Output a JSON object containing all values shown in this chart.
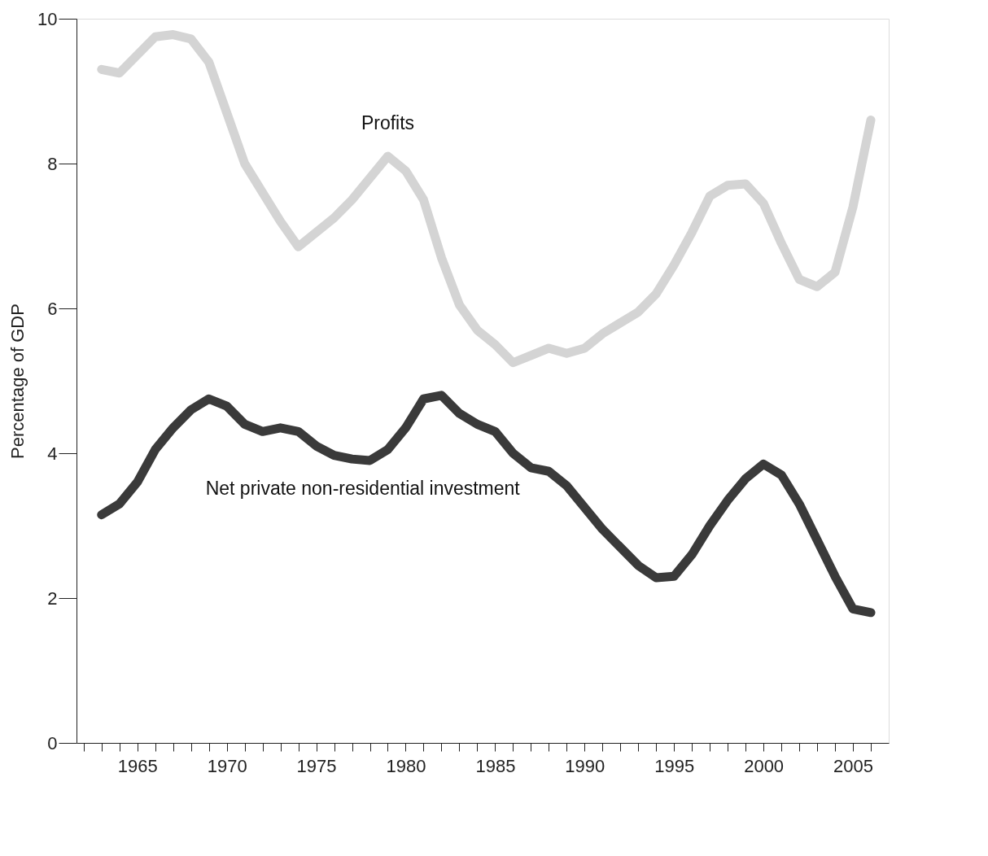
{
  "chart_data": {
    "type": "line",
    "ylabel": "Percentage of GDP",
    "x": [
      1963,
      1964,
      1965,
      1966,
      1967,
      1968,
      1969,
      1970,
      1971,
      1972,
      1973,
      1974,
      1975,
      1976,
      1977,
      1978,
      1979,
      1980,
      1981,
      1982,
      1983,
      1984,
      1985,
      1986,
      1987,
      1988,
      1989,
      1990,
      1991,
      1992,
      1993,
      1994,
      1995,
      1996,
      1997,
      1998,
      1999,
      2000,
      2001,
      2002,
      2003,
      2004,
      2005,
      2006
    ],
    "series": [
      {
        "color": "#d4d4d4",
        "values": [
          9.3,
          9.25,
          9.5,
          9.75,
          9.78,
          9.72,
          9.4,
          8.7,
          8.0,
          7.6,
          7.2,
          6.85,
          7.05,
          7.25,
          7.5,
          7.8,
          8.1,
          7.9,
          7.5,
          6.7,
          6.05,
          5.7,
          5.5,
          5.25,
          5.35,
          5.45,
          5.38,
          5.45,
          5.65,
          5.8,
          5.95,
          6.2,
          6.6,
          7.05,
          7.55,
          7.7,
          7.72,
          7.45,
          6.9,
          6.4,
          6.3,
          6.5,
          7.4,
          8.6
        ]
      },
      {
        "color": "#3a3a3a",
        "values": [
          3.15,
          3.3,
          3.6,
          4.05,
          4.35,
          4.6,
          4.75,
          4.65,
          4.4,
          4.3,
          4.35,
          4.3,
          4.1,
          3.97,
          3.92,
          3.9,
          4.05,
          4.35,
          4.75,
          4.8,
          4.55,
          4.4,
          4.3,
          4.0,
          3.8,
          3.75,
          3.55,
          3.25,
          2.95,
          2.7,
          2.45,
          2.28,
          2.3,
          2.6,
          3.0,
          3.35,
          3.65,
          3.85,
          3.7,
          3.3,
          2.8,
          2.3,
          1.85,
          1.8
        ]
      }
    ],
    "annotations": [
      {
        "text": "Profits",
        "x": 1979,
        "y": 8.1
      },
      {
        "text": "Net private non-residential investment",
        "x": 1977.6,
        "y": 3.9
      }
    ],
    "xlim": [
      1961.6,
      2007
    ],
    "ylim": [
      0,
      10
    ],
    "yticks": [
      0,
      2,
      4,
      6,
      8,
      10
    ],
    "xticks": [
      {
        "value": 1962,
        "label": null
      },
      {
        "value": 1963,
        "label": null
      },
      {
        "value": 1964,
        "label": null
      },
      1965,
      {
        "value": 1966,
        "label": null
      },
      {
        "value": 1967,
        "label": null
      },
      {
        "value": 1968,
        "label": null
      },
      {
        "value": 1969,
        "label": null
      },
      1970,
      {
        "value": 1971,
        "label": null
      },
      {
        "value": 1972,
        "label": null
      },
      {
        "value": 1973,
        "label": null
      },
      {
        "value": 1974,
        "label": null
      },
      1975,
      {
        "value": 1976,
        "label": null
      },
      {
        "value": 1977,
        "label": null
      },
      {
        "value": 1978,
        "label": null
      },
      {
        "value": 1979,
        "label": null
      },
      1980,
      {
        "value": 1981,
        "label": null
      },
      {
        "value": 1982,
        "label": null
      },
      {
        "value": 1983,
        "label": null
      },
      {
        "value": 1984,
        "label": null
      },
      1985,
      {
        "value": 1986,
        "label": null
      },
      {
        "value": 1987,
        "label": null
      },
      {
        "value": 1988,
        "label": null
      },
      {
        "value": 1989,
        "label": null
      },
      1990,
      {
        "value": 1991,
        "label": null
      },
      {
        "value": 1992,
        "label": null
      },
      {
        "value": 1993,
        "label": null
      },
      {
        "value": 1994,
        "label": null
      },
      1995,
      {
        "value": 1996,
        "label": null
      },
      {
        "value": 1997,
        "label": null
      },
      {
        "value": 1998,
        "label": null
      },
      {
        "value": 1999,
        "label": null
      },
      2000,
      {
        "value": 2001,
        "label": null
      },
      {
        "value": 2002,
        "label": null
      },
      {
        "value": 2003,
        "label": null
      },
      {
        "value": 2004,
        "label": null
      },
      2005,
      {
        "value": 2006,
        "label": null
      }
    ],
    "grid": false
  }
}
